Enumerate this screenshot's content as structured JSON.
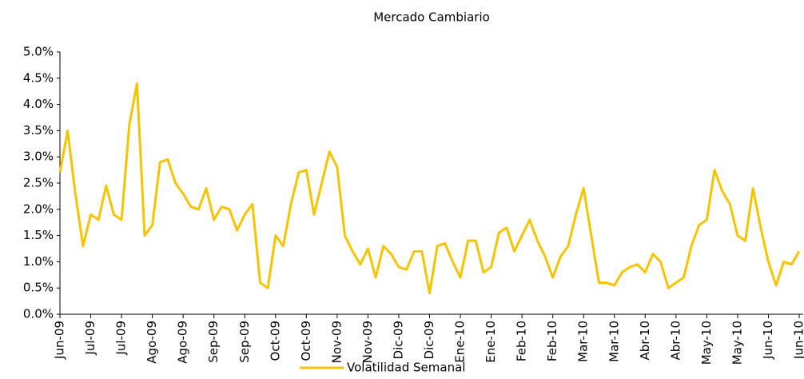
{
  "chart_data": {
    "type": "line",
    "title": "Mercado Cambiario",
    "categories": [
      "Jun-09",
      null,
      null,
      null,
      "Jul-09",
      null,
      null,
      null,
      "Jul-09",
      null,
      null,
      null,
      "Ago-09",
      null,
      null,
      null,
      "Ago-09",
      null,
      null,
      null,
      "Sep-09",
      null,
      null,
      null,
      "Sep-09",
      null,
      null,
      null,
      "Oct-09",
      null,
      null,
      null,
      "Oct-09",
      null,
      null,
      null,
      "Nov-09",
      null,
      null,
      null,
      "Nov-09",
      null,
      null,
      null,
      "Dic-09",
      null,
      null,
      null,
      "Dic-09",
      null,
      null,
      null,
      "Ene-10",
      null,
      null,
      null,
      "Ene-10",
      null,
      null,
      null,
      "Feb-10",
      null,
      null,
      null,
      "Feb-10",
      null,
      null,
      null,
      "Mar-10",
      null,
      null,
      null,
      "Mar-10",
      null,
      null,
      null,
      "Abr-10",
      null,
      null,
      null,
      "Abr-10",
      null,
      null,
      null,
      "May-10",
      null,
      null,
      null,
      "May-10",
      null,
      null,
      null,
      "Jun-10",
      null,
      null,
      null,
      "Jun-10"
    ],
    "series": [
      {
        "name": "Volatilidad Semanal",
        "color": "#f5c400",
        "values": [
          2.7,
          3.5,
          2.3,
          1.3,
          1.9,
          1.8,
          2.45,
          1.9,
          1.8,
          3.6,
          4.4,
          1.5,
          1.7,
          2.9,
          2.95,
          2.5,
          2.3,
          2.05,
          2.0,
          2.4,
          1.8,
          2.05,
          2.0,
          1.6,
          1.9,
          2.1,
          0.6,
          0.5,
          1.5,
          1.3,
          2.1,
          2.7,
          2.75,
          1.9,
          2.5,
          3.1,
          2.8,
          1.5,
          1.2,
          0.95,
          1.25,
          0.7,
          1.3,
          1.15,
          0.9,
          0.85,
          1.2,
          1.2,
          0.4,
          1.3,
          1.35,
          1.0,
          0.7,
          1.4,
          1.4,
          0.8,
          0.9,
          1.55,
          1.65,
          1.2,
          1.5,
          1.8,
          1.4,
          1.1,
          0.7,
          1.1,
          1.3,
          1.9,
          2.4,
          1.5,
          0.6,
          0.6,
          0.55,
          0.8,
          0.9,
          0.95,
          0.8,
          1.15,
          1.0,
          0.5,
          0.6,
          0.7,
          1.3,
          1.7,
          1.8,
          2.75,
          2.35,
          2.1,
          1.5,
          1.4,
          2.4,
          1.65,
          1.0,
          0.55,
          1.0,
          0.95,
          1.2
        ]
      }
    ],
    "ylim": [
      0,
      5
    ],
    "yticks": [
      {
        "value": 0,
        "label": "0.0%"
      },
      {
        "value": 0.5,
        "label": "0.5%"
      },
      {
        "value": 1,
        "label": "1.0%"
      },
      {
        "value": 1.5,
        "label": "1.5%"
      },
      {
        "value": 2,
        "label": "2.0%"
      },
      {
        "value": 2.5,
        "label": "2.5%"
      },
      {
        "value": 3,
        "label": "3.0%"
      },
      {
        "value": 3.5,
        "label": "3.5%"
      },
      {
        "value": 4,
        "label": "4.0%"
      },
      {
        "value": 4.5,
        "label": "4.5%"
      },
      {
        "value": 5,
        "label": "5.0%"
      }
    ],
    "grid": false,
    "legend": "bottom"
  }
}
